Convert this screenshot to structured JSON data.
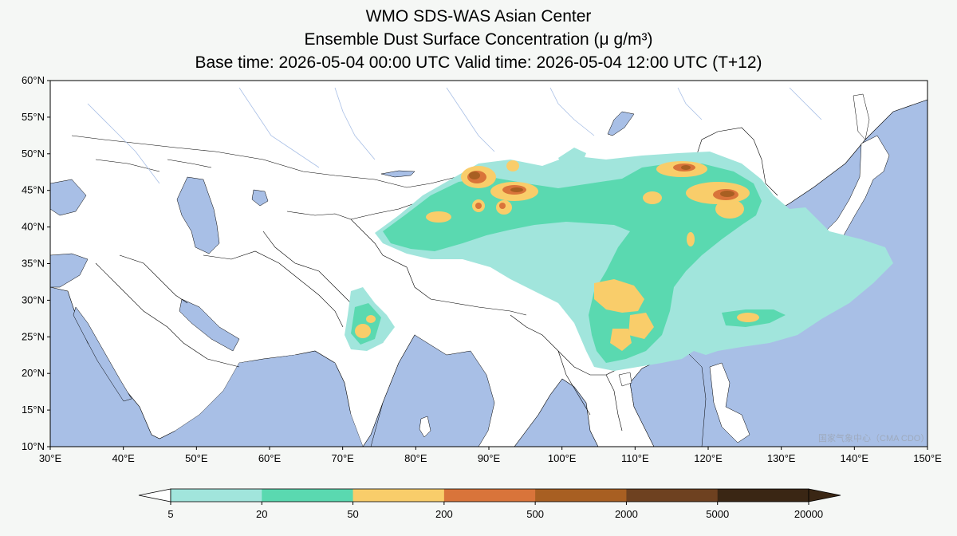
{
  "titles": {
    "line1": "WMO SDS-WAS Asian Center",
    "line2": "Ensemble Dust Surface Concentration (μ g/m³)",
    "line3": "Base time: 2026-05-04 00:00 UTC Valid time: 2026-05-04 12:00 UTC (T+12)"
  },
  "map": {
    "lon_range": [
      30,
      150
    ],
    "lat_range": [
      10,
      60
    ],
    "x_ticks": [
      "30°E",
      "40°E",
      "50°E",
      "60°E",
      "70°E",
      "80°E",
      "90°E",
      "100°E",
      "110°E",
      "120°E",
      "130°E",
      "140°E",
      "150°E"
    ],
    "y_ticks": [
      "60°N",
      "55°N",
      "50°N",
      "45°N",
      "40°N",
      "35°N",
      "30°N",
      "25°N",
      "20°N",
      "15°N",
      "10°N"
    ],
    "colors": {
      "ocean": "#a8bfe6",
      "land": "#ffffff",
      "border": "#000000",
      "rivers": "#a8bfe6"
    }
  },
  "colorbar": {
    "labels": [
      "5",
      "20",
      "50",
      "200",
      "500",
      "2000",
      "5000",
      "20000"
    ],
    "colors": [
      "#a1e5dc",
      "#5ad9b0",
      "#f9cd6a",
      "#d9743a",
      "#a85f22",
      "#6e4120",
      "#3a2614"
    ],
    "extend": "both"
  },
  "watermark": "国家气象中心（CMA CDO）"
}
